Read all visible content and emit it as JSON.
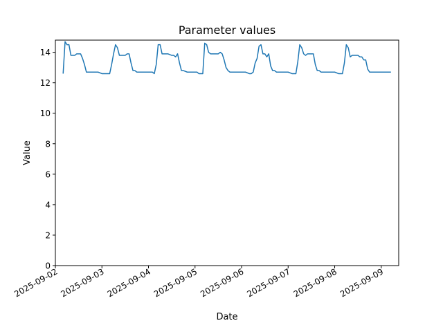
{
  "chart_data": {
    "type": "line",
    "title": "Parameter values",
    "xlabel": "Date",
    "ylabel": "Value",
    "xlim": [
      "2025-09-02 00:00",
      "2025-09-09 09:00"
    ],
    "ylim": [
      0,
      14.8
    ],
    "yticks": [
      0,
      2,
      4,
      6,
      8,
      10,
      12,
      14
    ],
    "xticks": [
      "2025-09-02",
      "2025-09-03",
      "2025-09-04",
      "2025-09-05",
      "2025-09-06",
      "2025-09-07",
      "2025-09-08",
      "2025-09-09"
    ],
    "grid": false,
    "color": "#1f77b4",
    "series": [
      {
        "x": [
          "2025-09-02 04:00",
          "2025-09-02 05:00",
          "2025-09-02 06:00",
          "2025-09-02 07:00",
          "2025-09-02 08:00",
          "2025-09-02 09:00",
          "2025-09-02 10:00",
          "2025-09-02 11:00",
          "2025-09-02 12:00",
          "2025-09-02 13:00",
          "2025-09-02 14:00",
          "2025-09-02 15:00",
          "2025-09-02 16:00",
          "2025-09-02 18:00",
          "2025-09-02 20:00",
          "2025-09-02 22:00",
          "2025-09-03 00:00",
          "2025-09-03 02:00",
          "2025-09-03 04:00",
          "2025-09-03 05:00",
          "2025-09-03 06:00",
          "2025-09-03 07:00",
          "2025-09-03 08:00",
          "2025-09-03 09:00",
          "2025-09-03 10:00",
          "2025-09-03 11:00",
          "2025-09-03 12:00",
          "2025-09-03 13:00",
          "2025-09-03 14:00",
          "2025-09-03 15:00",
          "2025-09-03 16:00",
          "2025-09-03 17:00",
          "2025-09-03 18:00",
          "2025-09-03 20:00",
          "2025-09-03 22:00",
          "2025-09-04 00:00",
          "2025-09-04 02:00",
          "2025-09-04 03:00",
          "2025-09-04 04:00",
          "2025-09-04 05:00",
          "2025-09-04 06:00",
          "2025-09-04 07:00",
          "2025-09-04 08:00",
          "2025-09-04 10:00",
          "2025-09-04 12:00",
          "2025-09-04 13:00",
          "2025-09-04 14:00",
          "2025-09-04 15:00",
          "2025-09-04 16:00",
          "2025-09-04 17:00",
          "2025-09-04 18:00",
          "2025-09-04 20:00",
          "2025-09-04 22:00",
          "2025-09-05 00:00",
          "2025-09-05 01:00",
          "2025-09-05 02:00",
          "2025-09-05 03:00",
          "2025-09-05 04:00",
          "2025-09-05 05:00",
          "2025-09-05 06:00",
          "2025-09-05 07:00",
          "2025-09-05 08:00",
          "2025-09-05 10:00",
          "2025-09-05 12:00",
          "2025-09-05 13:00",
          "2025-09-05 14:00",
          "2025-09-05 15:00",
          "2025-09-05 16:00",
          "2025-09-05 17:00",
          "2025-09-05 18:00",
          "2025-09-05 20:00",
          "2025-09-05 22:00",
          "2025-09-06 00:00",
          "2025-09-06 02:00",
          "2025-09-06 04:00",
          "2025-09-06 05:00",
          "2025-09-06 06:00",
          "2025-09-06 07:00",
          "2025-09-06 08:00",
          "2025-09-06 09:00",
          "2025-09-06 10:00",
          "2025-09-06 11:00",
          "2025-09-06 12:00",
          "2025-09-06 13:00",
          "2025-09-06 14:00",
          "2025-09-06 15:00",
          "2025-09-06 16:00",
          "2025-09-06 17:00",
          "2025-09-06 18:00",
          "2025-09-06 20:00",
          "2025-09-06 22:00",
          "2025-09-07 00:00",
          "2025-09-07 02:00",
          "2025-09-07 03:00",
          "2025-09-07 04:00",
          "2025-09-07 05:00",
          "2025-09-07 06:00",
          "2025-09-07 07:00",
          "2025-09-07 08:00",
          "2025-09-07 09:00",
          "2025-09-07 10:00",
          "2025-09-07 12:00",
          "2025-09-07 13:00",
          "2025-09-07 14:00",
          "2025-09-07 15:00",
          "2025-09-07 16:00",
          "2025-09-07 17:00",
          "2025-09-07 18:00",
          "2025-09-07 20:00",
          "2025-09-07 22:00",
          "2025-09-08 00:00",
          "2025-09-08 02:00",
          "2025-09-08 03:00",
          "2025-09-08 04:00",
          "2025-09-08 05:00",
          "2025-09-08 06:00",
          "2025-09-08 07:00",
          "2025-09-08 08:00",
          "2025-09-08 09:00",
          "2025-09-08 10:00",
          "2025-09-08 12:00",
          "2025-09-08 13:00",
          "2025-09-08 14:00",
          "2025-09-08 15:00",
          "2025-09-08 16:00",
          "2025-09-08 17:00",
          "2025-09-08 18:00",
          "2025-09-08 20:00",
          "2025-09-08 22:00",
          "2025-09-09 00:00",
          "2025-09-09 02:00",
          "2025-09-09 04:00",
          "2025-09-09 05:00"
        ],
        "y": [
          12.6,
          14.7,
          14.5,
          14.5,
          13.8,
          13.8,
          13.8,
          13.9,
          13.9,
          13.9,
          13.6,
          13.2,
          12.7,
          12.7,
          12.7,
          12.7,
          12.6,
          12.6,
          12.6,
          13.2,
          13.9,
          14.5,
          14.3,
          13.8,
          13.8,
          13.8,
          13.8,
          13.9,
          13.9,
          13.3,
          12.8,
          12.8,
          12.7,
          12.7,
          12.7,
          12.7,
          12.7,
          12.6,
          13.2,
          14.5,
          14.5,
          13.9,
          13.9,
          13.9,
          13.8,
          13.8,
          13.7,
          13.9,
          13.3,
          12.8,
          12.8,
          12.7,
          12.7,
          12.7,
          12.7,
          12.6,
          12.6,
          12.6,
          14.6,
          14.5,
          14.0,
          13.9,
          13.9,
          13.9,
          14.0,
          13.9,
          13.5,
          13.0,
          12.8,
          12.7,
          12.7,
          12.7,
          12.7,
          12.7,
          12.6,
          12.6,
          12.7,
          13.3,
          13.6,
          14.4,
          14.5,
          13.9,
          13.9,
          13.7,
          13.9,
          13.1,
          12.8,
          12.8,
          12.7,
          12.7,
          12.7,
          12.7,
          12.6,
          12.6,
          12.6,
          13.4,
          14.5,
          14.3,
          13.9,
          13.8,
          13.9,
          13.9,
          13.9,
          13.2,
          12.8,
          12.8,
          12.7,
          12.7,
          12.7,
          12.7,
          12.7,
          12.6,
          12.6,
          12.6,
          13.3,
          14.5,
          14.3,
          13.7,
          13.8,
          13.8,
          13.8,
          13.7,
          13.7,
          13.5,
          13.5,
          12.9,
          12.7,
          12.7,
          12.7,
          12.7,
          12.7,
          12.7,
          12.7
        ]
      }
    ]
  }
}
